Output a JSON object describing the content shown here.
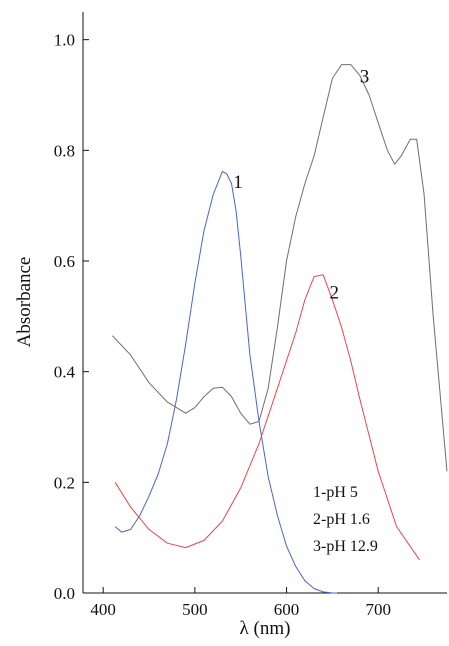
{
  "chart_data": {
    "type": "line",
    "title": "",
    "xlabel": "λ (nm)",
    "ylabel": "Absorbance",
    "xlim": [
      378,
      775
    ],
    "ylim": [
      0,
      1.05
    ],
    "xticks": [
      400,
      500,
      600,
      700
    ],
    "xtick_labels": [
      "400",
      "500",
      "600",
      "700"
    ],
    "yticks": [
      0,
      0.2,
      0.4,
      0.6,
      0.8,
      1.0
    ],
    "ytick_labels": [
      "0.0",
      "0.2",
      "0.4",
      "0.6",
      "0.8",
      "1.0"
    ],
    "grid": false,
    "legend_lines": [
      "1-pH 5",
      "2-pH 1.6",
      "3-pH 12.9"
    ],
    "series": [
      {
        "label": "1",
        "color": "#4a63d6",
        "x": [
          413,
          420,
          430,
          440,
          450,
          460,
          470,
          480,
          490,
          500,
          510,
          520,
          530,
          535,
          540,
          545,
          550,
          555,
          560,
          565,
          570,
          575,
          580,
          590,
          600,
          610,
          620,
          630,
          640,
          650,
          655
        ],
        "y": [
          0.12,
          0.11,
          0.115,
          0.14,
          0.175,
          0.215,
          0.27,
          0.35,
          0.45,
          0.56,
          0.655,
          0.72,
          0.762,
          0.757,
          0.74,
          0.69,
          0.61,
          0.52,
          0.43,
          0.37,
          0.31,
          0.26,
          0.21,
          0.14,
          0.085,
          0.048,
          0.022,
          0.008,
          0.002,
          0.0,
          0.0
        ]
      },
      {
        "label": "2",
        "color": "#e8474d",
        "x": [
          413,
          430,
          450,
          470,
          490,
          510,
          530,
          550,
          570,
          590,
          610,
          620,
          630,
          640,
          650,
          660,
          670,
          680,
          700,
          720,
          745
        ],
        "y": [
          0.2,
          0.155,
          0.115,
          0.09,
          0.082,
          0.095,
          0.13,
          0.19,
          0.27,
          0.37,
          0.47,
          0.53,
          0.572,
          0.575,
          0.53,
          0.48,
          0.42,
          0.35,
          0.22,
          0.12,
          0.06
        ]
      },
      {
        "label": "3",
        "color": "#6e6e6e",
        "x": [
          410,
          430,
          450,
          470,
          490,
          500,
          510,
          520,
          530,
          540,
          550,
          560,
          570,
          580,
          590,
          600,
          610,
          620,
          630,
          640,
          650,
          660,
          670,
          680,
          690,
          700,
          710,
          718,
          725,
          735,
          742,
          750,
          760,
          775
        ],
        "y": [
          0.465,
          0.43,
          0.38,
          0.345,
          0.325,
          0.335,
          0.355,
          0.37,
          0.372,
          0.355,
          0.325,
          0.305,
          0.31,
          0.37,
          0.48,
          0.6,
          0.68,
          0.74,
          0.79,
          0.86,
          0.93,
          0.955,
          0.955,
          0.935,
          0.9,
          0.85,
          0.8,
          0.775,
          0.79,
          0.82,
          0.82,
          0.72,
          0.5,
          0.22
        ]
      }
    ],
    "curve_labels": [
      {
        "text": "1",
        "x": 547,
        "y": 0.745
      },
      {
        "text": "2",
        "x": 652,
        "y": 0.545
      },
      {
        "text": "3",
        "x": 685,
        "y": 0.935
      }
    ]
  }
}
